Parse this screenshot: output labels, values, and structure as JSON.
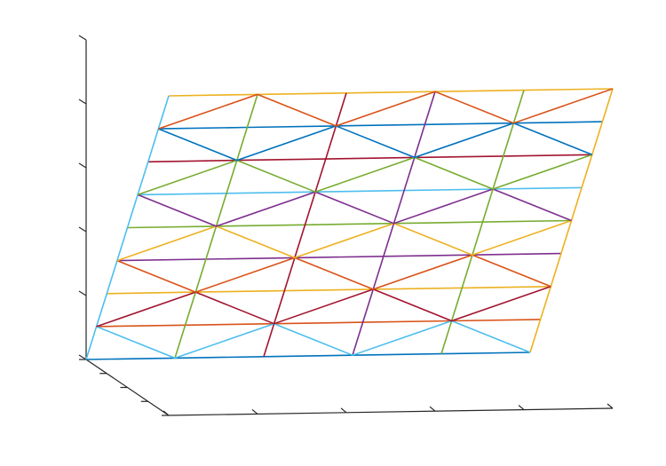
{
  "chart_data": {
    "type": "line3d",
    "xlim": [
      0,
      5
    ],
    "xticks": [
      0,
      1,
      2,
      3,
      4,
      5
    ],
    "ylim": [
      0,
      4
    ],
    "yticks": [
      0,
      1,
      2,
      3,
      4
    ],
    "zlim": [
      0,
      5
    ],
    "zticks": [
      0,
      1,
      2,
      3,
      4,
      5
    ],
    "series": [
      {
        "color": "#0072BD",
        "x": [
          0,
          1,
          2,
          3,
          4,
          5
        ],
        "y": [
          4,
          4,
          4,
          4,
          4,
          4
        ],
        "z": [
          0,
          0,
          0,
          0,
          0,
          0
        ]
      },
      {
        "color": "#D95319",
        "x": [
          0,
          1,
          2,
          3,
          4,
          5
        ],
        "y": [
          3.5,
          3.5,
          3.5,
          3.5,
          3.5,
          3.5
        ],
        "z": [
          0.625,
          0.625,
          0.625,
          0.625,
          0.625,
          0.625
        ]
      },
      {
        "color": "#EDB120",
        "x": [
          0,
          1,
          2,
          3,
          4,
          5
        ],
        "y": [
          3,
          3,
          3,
          3,
          3,
          3
        ],
        "z": [
          1.25,
          1.25,
          1.25,
          1.25,
          1.25,
          1.25
        ]
      },
      {
        "color": "#7E2F8E",
        "x": [
          0,
          1,
          2,
          3,
          4,
          5
        ],
        "y": [
          2.5,
          2.5,
          2.5,
          2.5,
          2.5,
          2.5
        ],
        "z": [
          1.875,
          1.875,
          1.875,
          1.875,
          1.875,
          1.875
        ]
      },
      {
        "color": "#77AC30",
        "x": [
          0,
          1,
          2,
          3,
          4,
          5
        ],
        "y": [
          2,
          2,
          2,
          2,
          2,
          2
        ],
        "z": [
          2.5,
          2.5,
          2.5,
          2.5,
          2.5,
          2.5
        ]
      },
      {
        "color": "#4DBEEE",
        "x": [
          0,
          1,
          2,
          3,
          4,
          5
        ],
        "y": [
          1.5,
          1.5,
          1.5,
          1.5,
          1.5,
          1.5
        ],
        "z": [
          3.125,
          3.125,
          3.125,
          3.125,
          3.125,
          3.125
        ]
      },
      {
        "color": "#A2142F",
        "x": [
          0,
          1,
          2,
          3,
          4,
          5
        ],
        "y": [
          1,
          1,
          1,
          1,
          1,
          1
        ],
        "z": [
          3.75,
          3.75,
          3.75,
          3.75,
          3.75,
          3.75
        ]
      },
      {
        "color": "#0072BD",
        "x": [
          0,
          1,
          2,
          3,
          4,
          5
        ],
        "y": [
          0.5,
          0.5,
          0.5,
          0.5,
          0.5,
          0.5
        ],
        "z": [
          4.375,
          4.375,
          4.375,
          4.375,
          4.375,
          4.375
        ]
      },
      {
        "color": "#EDB120",
        "x": [
          0,
          1,
          2,
          3,
          4,
          5
        ],
        "y": [
          0,
          0,
          0,
          0,
          0,
          0
        ],
        "z": [
          5,
          5,
          5,
          5,
          5,
          5
        ]
      },
      {
        "color": "#4DBEEE",
        "x": [
          0,
          0,
          0,
          0,
          0,
          0,
          0,
          0,
          0
        ],
        "y": [
          4,
          3.5,
          3,
          2.5,
          2,
          1.5,
          1,
          0.5,
          0
        ],
        "z": [
          0,
          0.625,
          1.25,
          1.875,
          2.5,
          3.125,
          3.75,
          4.375,
          5
        ]
      },
      {
        "color": "#77AC30",
        "x": [
          1,
          1,
          1,
          1,
          1,
          1,
          1,
          1,
          1
        ],
        "y": [
          4,
          3.5,
          3,
          2.5,
          2,
          1.5,
          1,
          0.5,
          0
        ],
        "z": [
          0,
          0.625,
          1.25,
          1.875,
          2.5,
          3.125,
          3.75,
          4.375,
          5
        ]
      },
      {
        "color": "#A2142F",
        "x": [
          2,
          2,
          2,
          2,
          2,
          2,
          2,
          2,
          2
        ],
        "y": [
          4,
          3.5,
          3,
          2.5,
          2,
          1.5,
          1,
          0.5,
          0
        ],
        "z": [
          0,
          0.625,
          1.25,
          1.875,
          2.5,
          3.125,
          3.75,
          4.375,
          5
        ]
      },
      {
        "color": "#7E2F8E",
        "x": [
          3,
          3,
          3,
          3,
          3,
          3,
          3,
          3,
          3
        ],
        "y": [
          4,
          3.5,
          3,
          2.5,
          2,
          1.5,
          1,
          0.5,
          0
        ],
        "z": [
          0,
          0.625,
          1.25,
          1.875,
          2.5,
          3.125,
          3.75,
          4.375,
          5
        ]
      },
      {
        "color": "#77AC30",
        "x": [
          4,
          4,
          4,
          4,
          4,
          4,
          4,
          4,
          4
        ],
        "y": [
          4,
          3.5,
          3,
          2.5,
          2,
          1.5,
          1,
          0.5,
          0
        ],
        "z": [
          0,
          0.625,
          1.25,
          1.875,
          2.5,
          3.125,
          3.75,
          4.375,
          5
        ]
      },
      {
        "color": "#EDB120",
        "x": [
          5,
          5,
          5,
          5,
          5,
          5,
          5,
          5,
          5
        ],
        "y": [
          4,
          3.5,
          3,
          2.5,
          2,
          1.5,
          1,
          0.5,
          0
        ],
        "z": [
          0,
          0.625,
          1.25,
          1.875,
          2.5,
          3.125,
          3.75,
          4.375,
          5
        ]
      },
      {
        "color": "#4DBEEE",
        "x": [
          0,
          1,
          2,
          3,
          4,
          5
        ],
        "y": [
          3.5,
          4,
          3.5,
          4,
          3.5,
          4
        ],
        "z": [
          0.625,
          0,
          0.625,
          0,
          0.625,
          0
        ]
      },
      {
        "color": "#A2142F",
        "x": [
          0,
          1,
          2,
          3,
          4,
          5
        ],
        "y": [
          3.5,
          3,
          3.5,
          3,
          3.5,
          3
        ],
        "z": [
          0.625,
          1.25,
          0.625,
          1.25,
          0.625,
          1.25
        ]
      },
      {
        "color": "#D95319",
        "x": [
          0,
          1,
          2,
          3,
          4,
          5
        ],
        "y": [
          2.5,
          3,
          2.5,
          3,
          2.5,
          3
        ],
        "z": [
          1.875,
          1.25,
          1.875,
          1.25,
          1.875,
          1.25
        ]
      },
      {
        "color": "#EDB120",
        "x": [
          0,
          1,
          2,
          3,
          4,
          5
        ],
        "y": [
          2.5,
          2,
          2.5,
          2,
          2.5,
          2
        ],
        "z": [
          1.875,
          2.5,
          1.875,
          2.5,
          1.875,
          2.5
        ]
      },
      {
        "color": "#7E2F8E",
        "x": [
          0,
          1,
          2,
          3,
          4,
          5
        ],
        "y": [
          1.5,
          2,
          1.5,
          2,
          1.5,
          2
        ],
        "z": [
          3.125,
          2.5,
          3.125,
          2.5,
          3.125,
          2.5
        ]
      },
      {
        "color": "#77AC30",
        "x": [
          0,
          1,
          2,
          3,
          4,
          5
        ],
        "y": [
          1.5,
          1,
          1.5,
          1,
          1.5,
          1
        ],
        "z": [
          3.125,
          3.75,
          3.125,
          3.75,
          3.125,
          3.75
        ]
      },
      {
        "color": "#0072BD",
        "x": [
          0,
          1,
          2,
          3,
          4,
          5
        ],
        "y": [
          0.5,
          1,
          0.5,
          1,
          0.5,
          1
        ],
        "z": [
          4.375,
          3.75,
          4.375,
          3.75,
          4.375,
          3.75
        ]
      },
      {
        "color": "#D95319",
        "x": [
          0,
          1,
          2,
          3,
          4,
          5
        ],
        "y": [
          0.5,
          0,
          0.5,
          0,
          0.5,
          0
        ],
        "z": [
          4.375,
          5,
          4.375,
          5,
          4.375,
          5
        ]
      }
    ]
  }
}
